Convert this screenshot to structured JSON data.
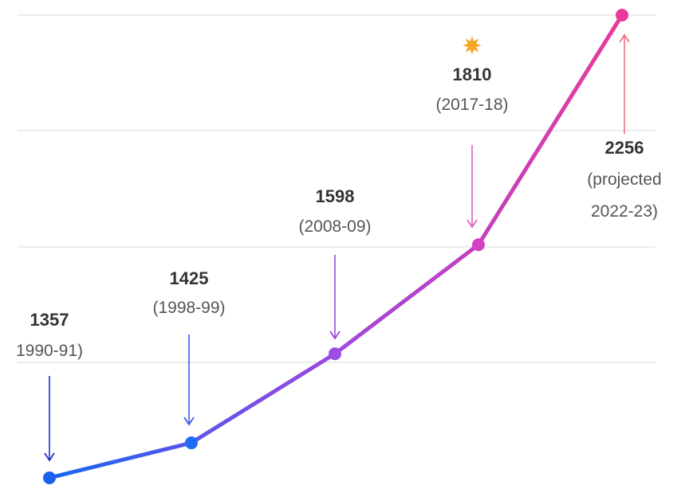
{
  "chart_data": {
    "type": "line",
    "title": "",
    "xlabel": "",
    "ylabel": "",
    "grid": true,
    "x": [
      "1990-91",
      "1998-99",
      "2008-09",
      "2017-18",
      "projected 2022-23"
    ],
    "values": [
      1357,
      1425,
      1598,
      1810,
      2256
    ],
    "ylim": [
      1357,
      2256
    ],
    "colors": {
      "start": "#1565f0",
      "mid": "#a046e0",
      "end": "#e83a9a",
      "star": "#f5a623"
    },
    "annotations": [
      {
        "value": "1357",
        "lines": [
          "1990-91)"
        ],
        "arrow_color": "#2030c8"
      },
      {
        "value": "1425",
        "lines": [
          "(1998-99)"
        ],
        "arrow_color": "#3d5ae0"
      },
      {
        "value": "1598",
        "lines": [
          "(2008-09)"
        ],
        "arrow_color": "#9a48e0"
      },
      {
        "value": "1810",
        "lines": [
          "(2017-18)"
        ],
        "arrow_color": "#e060b8",
        "star": true
      },
      {
        "value": "2256",
        "lines": [
          "(projected",
          "2022-23)"
        ],
        "arrow_color": "#f07080"
      }
    ]
  }
}
